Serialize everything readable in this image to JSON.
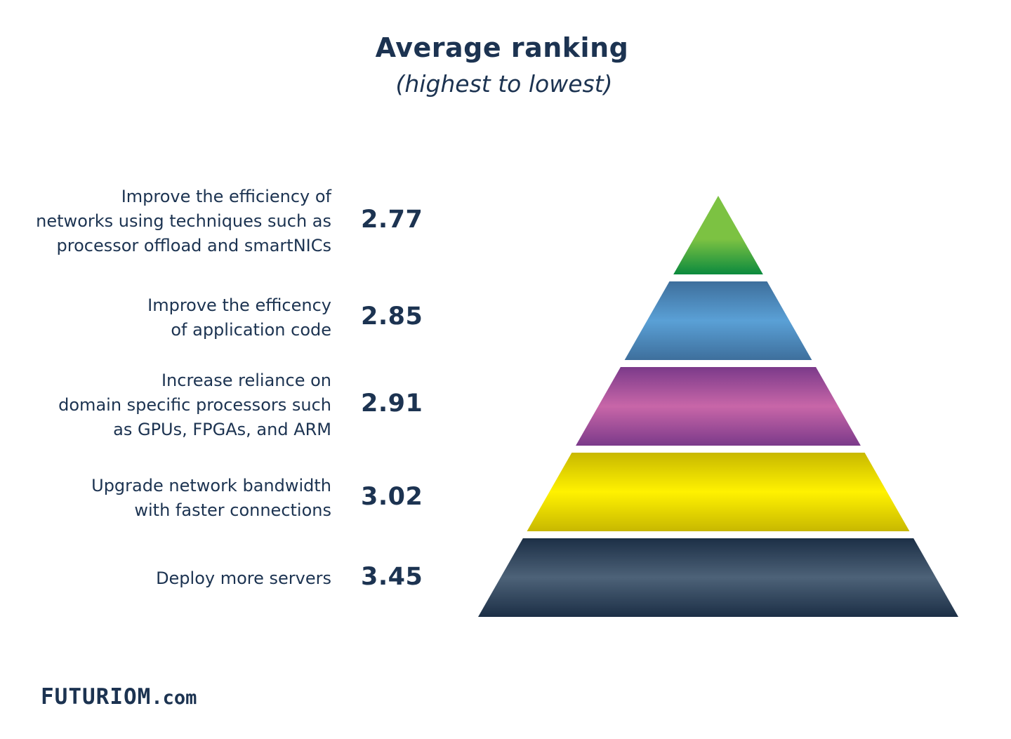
{
  "title": "Average ranking",
  "subtitle": "(highest to lowest)",
  "logo": {
    "main": "FUTURIOM",
    "domain": ".com"
  },
  "chart_data": {
    "type": "pyramid",
    "title": "Average ranking",
    "subtitle": "(highest to lowest)",
    "categories": [
      "Improve the efficiency of networks using techniques such as processor offload and smartNICs",
      "Improve the efficency of application code",
      "Increase reliance on domain specific processors such as GPUs, FPGAs, and ARM",
      "Upgrade network bandwidth with faster connections",
      "Deploy more servers"
    ],
    "values": [
      2.77,
      2.85,
      2.91,
      3.02,
      3.45
    ],
    "value_labels": [
      "2.77",
      "2.85",
      "2.91",
      "3.02",
      "3.45"
    ],
    "label_lines": [
      [
        "Improve the efficiency of",
        "networks using techniques such as",
        "processor offload and smartNICs"
      ],
      [
        "Improve the efficency",
        "of application code"
      ],
      [
        "Increase reliance on",
        "domain specific processors such",
        "as GPUs, FPGAs, and ARM"
      ],
      [
        "Upgrade network bandwidth",
        "with faster connections"
      ],
      [
        "Deploy more servers"
      ]
    ],
    "colors": [
      [
        "#7cc242",
        "#0b8a3e"
      ],
      [
        "#5aa0d6",
        "#3e6f9c"
      ],
      [
        "#c866a8",
        "#7b3a8a"
      ],
      [
        "#fff200",
        "#c8b800"
      ],
      [
        "#4d6278",
        "#1c2f46"
      ]
    ]
  }
}
